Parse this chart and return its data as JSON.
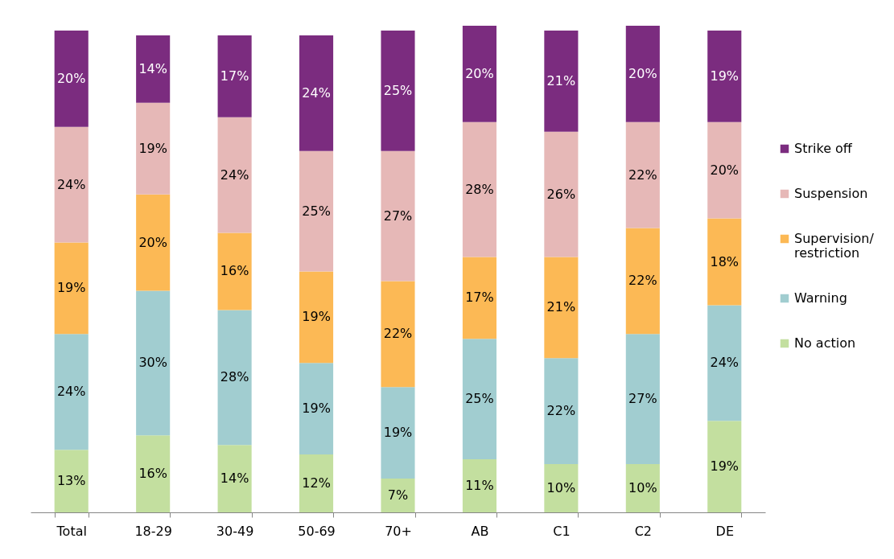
{
  "chart_data": {
    "type": "bar",
    "stacked": true,
    "legend": "right",
    "categories": [
      "Total",
      "18-29",
      "30-49",
      "50-69",
      "70+",
      "AB",
      "C1",
      "C2",
      "DE"
    ],
    "series": [
      {
        "name": "No action",
        "color": "#c3df9f",
        "values": [
          13,
          16,
          14,
          12,
          7,
          11,
          10,
          10,
          19
        ],
        "value_labels": [
          "13%",
          "16%",
          "14%",
          "12%",
          "7%",
          "11%",
          "10%",
          "10%",
          "19%"
        ]
      },
      {
        "name": "Warning",
        "color": "#a1cdd0",
        "values": [
          24,
          30,
          28,
          19,
          19,
          25,
          22,
          27,
          24
        ],
        "value_labels": [
          "24%",
          "30%",
          "28%",
          "19%",
          "19%",
          "25%",
          "22%",
          "27%",
          "24%"
        ]
      },
      {
        "name": "Supervision/restriction",
        "color": "#fcb955",
        "values": [
          19,
          20,
          16,
          19,
          22,
          17,
          21,
          22,
          18
        ],
        "value_labels": [
          "19%",
          "20%",
          "16%",
          "19%",
          "22%",
          "17%",
          "21%",
          "22%",
          "18%"
        ]
      },
      {
        "name": "Suspension",
        "color": "#e6b8b7",
        "values": [
          24,
          19,
          24,
          25,
          27,
          28,
          26,
          22,
          20
        ],
        "value_labels": [
          "24%",
          "19%",
          "24%",
          "25%",
          "27%",
          "28%",
          "26%",
          "22%",
          "20%"
        ]
      },
      {
        "name": "Strike off",
        "color": "#7b2c7f",
        "values": [
          20,
          14,
          17,
          24,
          25,
          20,
          21,
          20,
          19
        ],
        "value_labels": [
          "20%",
          "14%",
          "17%",
          "24%",
          "25%",
          "20%",
          "21%",
          "20%",
          "19%"
        ]
      }
    ]
  }
}
